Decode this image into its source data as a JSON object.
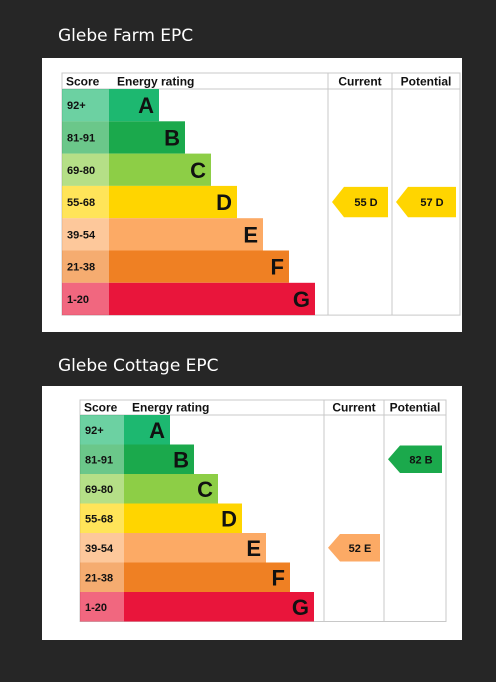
{
  "chart_data": [
    {
      "type": "table",
      "title": "Glebe Farm EPC",
      "headers": {
        "score": "Score",
        "rating": "Energy rating",
        "current": "Current",
        "potential": "Potential"
      },
      "bands": [
        {
          "score": "92+",
          "letter": "A",
          "color": "#1db870"
        },
        {
          "score": "81-91",
          "letter": "B",
          "color": "#1ba94c"
        },
        {
          "score": "69-80",
          "letter": "C",
          "color": "#8dce46"
        },
        {
          "score": "55-68",
          "letter": "D",
          "color": "#ffd500"
        },
        {
          "score": "39-54",
          "letter": "E",
          "color": "#fcaa65"
        },
        {
          "score": "21-38",
          "letter": "F",
          "color": "#ef8023"
        },
        {
          "score": "1-20",
          "letter": "G",
          "color": "#e9153b"
        }
      ],
      "current": {
        "value": 55,
        "band": "D",
        "label": "55 D"
      },
      "potential": {
        "value": 57,
        "band": "D",
        "label": "57 D"
      }
    },
    {
      "type": "table",
      "title": "Glebe Cottage EPC",
      "headers": {
        "score": "Score",
        "rating": "Energy rating",
        "current": "Current",
        "potential": "Potential"
      },
      "bands": [
        {
          "score": "92+",
          "letter": "A",
          "color": "#1db870"
        },
        {
          "score": "81-91",
          "letter": "B",
          "color": "#1ba94c"
        },
        {
          "score": "69-80",
          "letter": "C",
          "color": "#8dce46"
        },
        {
          "score": "55-68",
          "letter": "D",
          "color": "#ffd500"
        },
        {
          "score": "39-54",
          "letter": "E",
          "color": "#fcaa65"
        },
        {
          "score": "21-38",
          "letter": "F",
          "color": "#ef8023"
        },
        {
          "score": "1-20",
          "letter": "G",
          "color": "#e9153b"
        }
      ],
      "current": {
        "value": 52,
        "band": "E",
        "label": "52 E"
      },
      "potential": {
        "value": 82,
        "band": "B",
        "label": "82 B"
      }
    }
  ]
}
